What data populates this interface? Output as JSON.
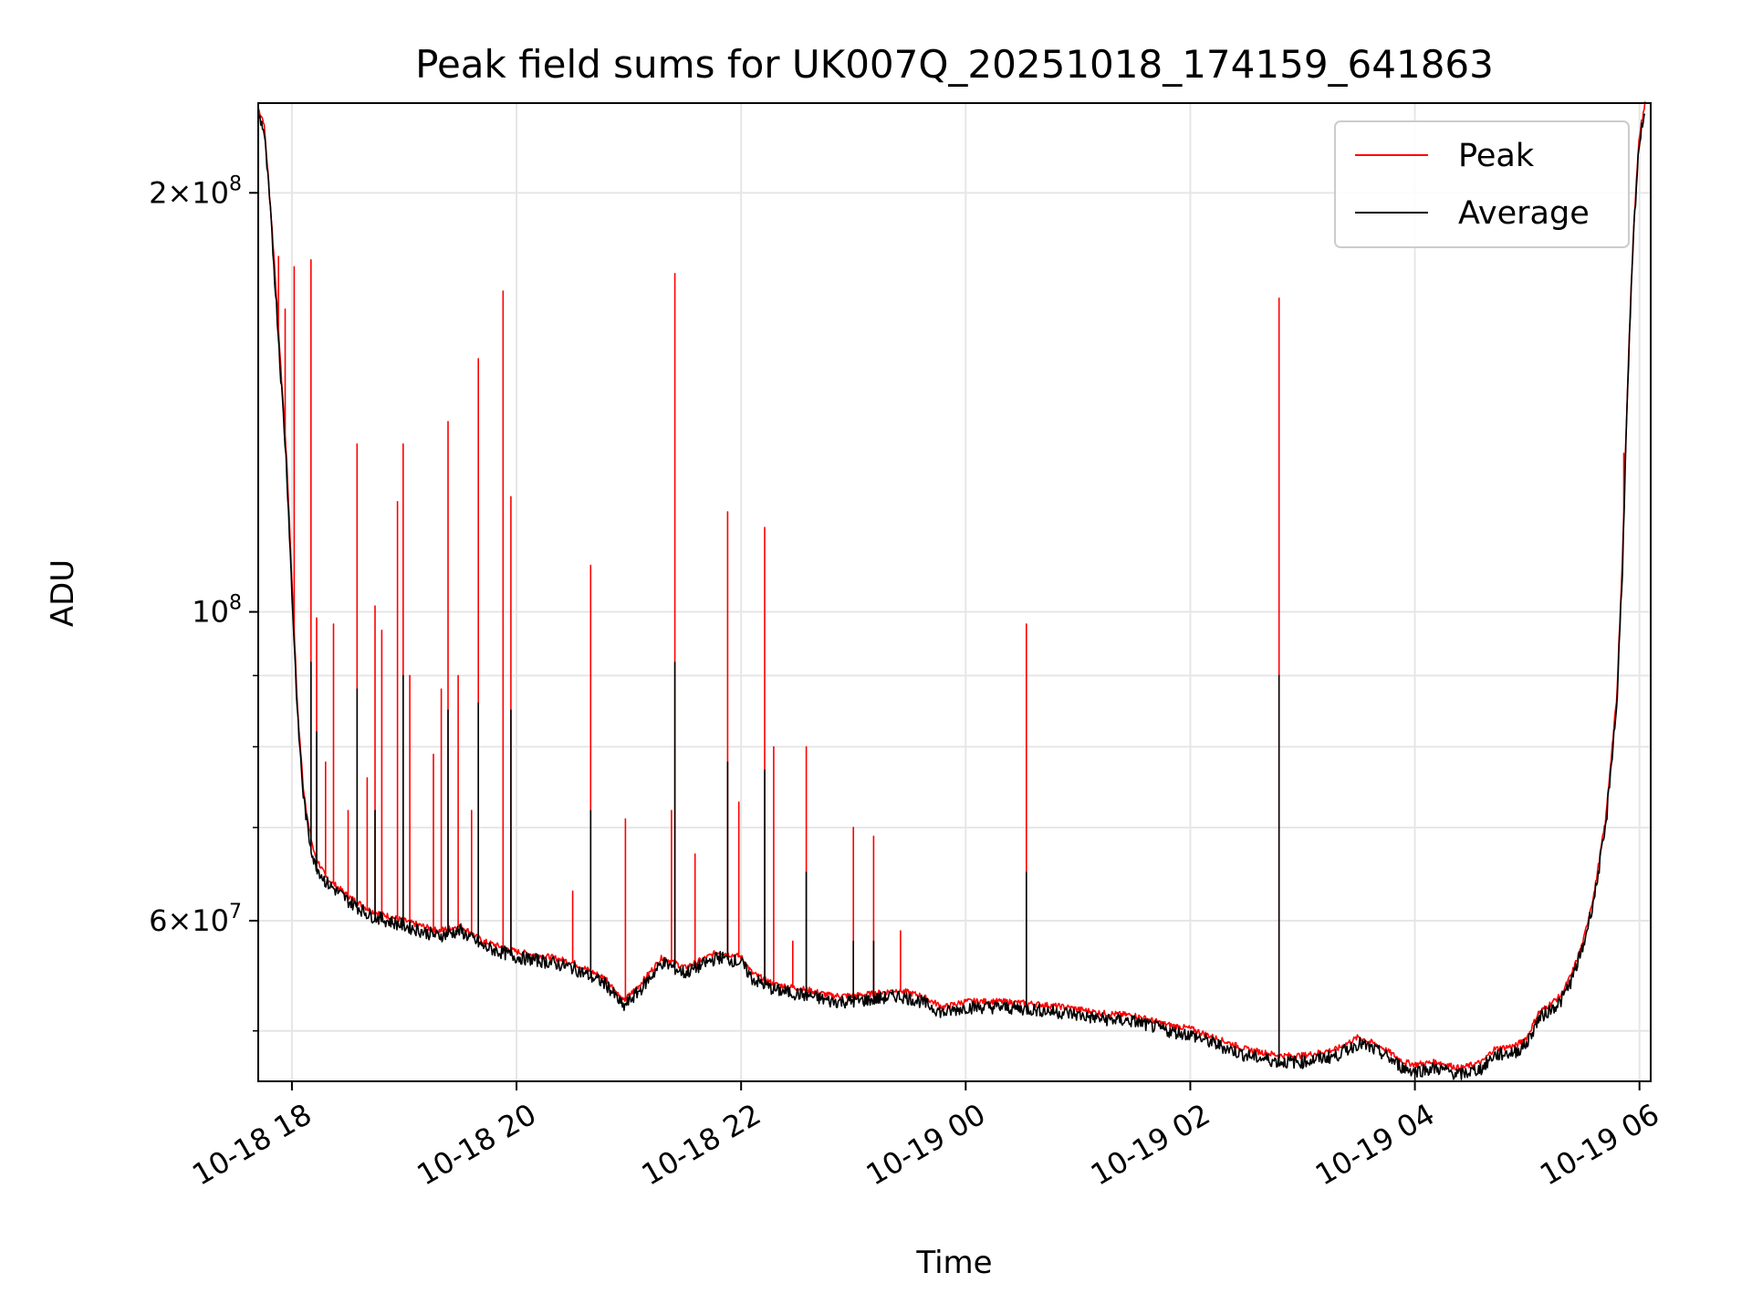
{
  "chart_data": {
    "type": "line",
    "title": "Peak field sums for UK007Q_20251018_174159_641863",
    "xlabel": "Time",
    "ylabel": "ADU",
    "yscale": "log",
    "ylim": [
      46000000,
      232000000
    ],
    "xlim_hours": [
      -0.3,
      12.1
    ],
    "grid": true,
    "legend_position": "top-right",
    "x_ticks": [
      {
        "hour": 0,
        "label": "10-18 18"
      },
      {
        "hour": 2,
        "label": "10-18 20"
      },
      {
        "hour": 4,
        "label": "10-18 22"
      },
      {
        "hour": 6,
        "label": "10-19 00"
      },
      {
        "hour": 8,
        "label": "10-19 02"
      },
      {
        "hour": 10,
        "label": "10-19 04"
      },
      {
        "hour": 12,
        "label": "10-19 06"
      }
    ],
    "y_ticks": [
      {
        "value": 200000000,
        "mantissa": "2",
        "exponent": "8"
      },
      {
        "value": 100000000,
        "mantissa": "",
        "exponent": "8"
      },
      {
        "value": 60000000,
        "mantissa": "6",
        "exponent": "7"
      }
    ],
    "y_minor_ticks": [
      50000000,
      70000000,
      80000000,
      90000000
    ],
    "series": [
      {
        "name": "Peak",
        "color": "#ff0000",
        "baseline": [
          [
            -0.3,
            230000000
          ],
          [
            -0.25,
            225000000
          ],
          [
            -0.2,
            200000000
          ],
          [
            -0.15,
            175000000
          ],
          [
            -0.1,
            150000000
          ],
          [
            -0.05,
            130000000
          ],
          [
            0.0,
            105000000
          ],
          [
            0.05,
            85000000
          ],
          [
            0.1,
            75000000
          ],
          [
            0.15,
            70000000
          ],
          [
            0.2,
            67000000
          ],
          [
            0.3,
            64500000
          ],
          [
            0.5,
            62500000
          ],
          [
            0.7,
            61000000
          ],
          [
            1.0,
            60000000
          ],
          [
            1.3,
            59000000
          ],
          [
            1.5,
            59500000
          ],
          [
            1.7,
            58000000
          ],
          [
            2.0,
            57000000
          ],
          [
            2.3,
            56500000
          ],
          [
            2.5,
            56000000
          ],
          [
            2.7,
            55000000
          ],
          [
            2.8,
            54500000
          ],
          [
            2.95,
            52500000
          ],
          [
            3.1,
            54000000
          ],
          [
            3.3,
            56500000
          ],
          [
            3.5,
            55500000
          ],
          [
            3.8,
            57000000
          ],
          [
            4.0,
            56500000
          ],
          [
            4.1,
            55000000
          ],
          [
            4.3,
            54000000
          ],
          [
            4.6,
            53500000
          ],
          [
            4.8,
            53000000
          ],
          [
            5.0,
            53000000
          ],
          [
            5.2,
            53200000
          ],
          [
            5.4,
            53500000
          ],
          [
            5.6,
            53000000
          ],
          [
            5.8,
            52000000
          ],
          [
            6.0,
            52500000
          ],
          [
            6.3,
            52500000
          ],
          [
            6.6,
            52300000
          ],
          [
            6.9,
            52000000
          ],
          [
            7.2,
            51500000
          ],
          [
            7.5,
            51300000
          ],
          [
            7.8,
            50500000
          ],
          [
            8.0,
            50200000
          ],
          [
            8.2,
            49500000
          ],
          [
            8.5,
            48500000
          ],
          [
            8.8,
            48000000
          ],
          [
            9.0,
            48000000
          ],
          [
            9.3,
            48500000
          ],
          [
            9.5,
            49500000
          ],
          [
            9.7,
            48700000
          ],
          [
            9.9,
            47500000
          ],
          [
            10.0,
            47300000
          ],
          [
            10.2,
            47500000
          ],
          [
            10.4,
            47000000
          ],
          [
            10.6,
            47500000
          ],
          [
            10.7,
            48500000
          ],
          [
            10.9,
            48800000
          ],
          [
            11.0,
            49500000
          ],
          [
            11.1,
            51500000
          ],
          [
            11.3,
            53000000
          ],
          [
            11.4,
            55000000
          ],
          [
            11.5,
            58000000
          ],
          [
            11.6,
            63000000
          ],
          [
            11.7,
            71000000
          ],
          [
            11.8,
            87000000
          ],
          [
            11.85,
            110000000
          ],
          [
            11.9,
            150000000
          ],
          [
            11.95,
            190000000
          ],
          [
            12.0,
            220000000
          ],
          [
            12.05,
            232000000
          ]
        ],
        "spikes": [
          [
            -0.12,
            180000000
          ],
          [
            -0.06,
            165000000
          ],
          [
            0.02,
            177000000
          ],
          [
            0.17,
            179000000
          ],
          [
            0.22,
            99000000
          ],
          [
            0.3,
            78000000
          ],
          [
            0.37,
            98000000
          ],
          [
            0.5,
            72000000
          ],
          [
            0.58,
            132000000
          ],
          [
            0.67,
            76000000
          ],
          [
            0.74,
            101000000
          ],
          [
            0.8,
            97000000
          ],
          [
            0.94,
            120000000
          ],
          [
            0.99,
            132000000
          ],
          [
            1.05,
            90000000
          ],
          [
            1.26,
            79000000
          ],
          [
            1.33,
            88000000
          ],
          [
            1.39,
            137000000
          ],
          [
            1.48,
            90000000
          ],
          [
            1.6,
            72000000
          ],
          [
            1.66,
            152000000
          ],
          [
            1.88,
            170000000
          ],
          [
            1.95,
            121000000
          ],
          [
            2.5,
            63000000
          ],
          [
            2.66,
            108000000
          ],
          [
            2.97,
            71000000
          ],
          [
            3.38,
            72000000
          ],
          [
            3.41,
            175000000
          ],
          [
            3.59,
            67000000
          ],
          [
            3.88,
            118000000
          ],
          [
            3.98,
            73000000
          ],
          [
            4.21,
            115000000
          ],
          [
            4.29,
            80000000
          ],
          [
            4.46,
            58000000
          ],
          [
            4.58,
            80000000
          ],
          [
            5.0,
            70000000
          ],
          [
            5.18,
            69000000
          ],
          [
            5.42,
            59000000
          ],
          [
            6.54,
            98000000
          ],
          [
            8.79,
            168000000
          ],
          [
            11.86,
            130000000
          ]
        ]
      },
      {
        "name": "Average",
        "color": "#000000",
        "baseline": [
          [
            -0.3,
            228000000
          ],
          [
            -0.25,
            222000000
          ],
          [
            -0.2,
            198000000
          ],
          [
            -0.15,
            172000000
          ],
          [
            -0.1,
            148000000
          ],
          [
            -0.05,
            128000000
          ],
          [
            0.0,
            103000000
          ],
          [
            0.05,
            84000000
          ],
          [
            0.1,
            74000000
          ],
          [
            0.15,
            69000000
          ],
          [
            0.2,
            66000000
          ],
          [
            0.3,
            64000000
          ],
          [
            0.5,
            62000000
          ],
          [
            0.7,
            60500000
          ],
          [
            1.0,
            59500000
          ],
          [
            1.3,
            58500000
          ],
          [
            1.5,
            59000000
          ],
          [
            1.7,
            57500000
          ],
          [
            2.0,
            56500000
          ],
          [
            2.3,
            56000000
          ],
          [
            2.5,
            55500000
          ],
          [
            2.7,
            54500000
          ],
          [
            2.8,
            54000000
          ],
          [
            2.95,
            52000000
          ],
          [
            3.1,
            53500000
          ],
          [
            3.3,
            56000000
          ],
          [
            3.5,
            55000000
          ],
          [
            3.8,
            56500000
          ],
          [
            4.0,
            56000000
          ],
          [
            4.1,
            54500000
          ],
          [
            4.3,
            53500000
          ],
          [
            4.6,
            53000000
          ],
          [
            4.8,
            52500000
          ],
          [
            5.0,
            52500000
          ],
          [
            5.2,
            52700000
          ],
          [
            5.4,
            53000000
          ],
          [
            5.6,
            52500000
          ],
          [
            5.8,
            51500000
          ],
          [
            6.0,
            52000000
          ],
          [
            6.3,
            52000000
          ],
          [
            6.6,
            51800000
          ],
          [
            6.9,
            51500000
          ],
          [
            7.2,
            51000000
          ],
          [
            7.5,
            50800000
          ],
          [
            7.8,
            50000000
          ],
          [
            8.0,
            49700000
          ],
          [
            8.2,
            49000000
          ],
          [
            8.5,
            48000000
          ],
          [
            8.8,
            47500000
          ],
          [
            9.0,
            47500000
          ],
          [
            9.3,
            48000000
          ],
          [
            9.5,
            49000000
          ],
          [
            9.7,
            48200000
          ],
          [
            9.9,
            47000000
          ],
          [
            10.0,
            46800000
          ],
          [
            10.2,
            47000000
          ],
          [
            10.4,
            46500000
          ],
          [
            10.6,
            47000000
          ],
          [
            10.7,
            48000000
          ],
          [
            10.9,
            48300000
          ],
          [
            11.0,
            49000000
          ],
          [
            11.1,
            51000000
          ],
          [
            11.3,
            52500000
          ],
          [
            11.4,
            54500000
          ],
          [
            11.5,
            57500000
          ],
          [
            11.6,
            62500000
          ],
          [
            11.7,
            70000000
          ],
          [
            11.8,
            86000000
          ],
          [
            11.85,
            108000000
          ],
          [
            11.9,
            148000000
          ],
          [
            11.95,
            188000000
          ],
          [
            12.0,
            218000000
          ],
          [
            12.05,
            230000000
          ]
        ],
        "spikes": [
          [
            0.17,
            92000000
          ],
          [
            0.22,
            82000000
          ],
          [
            0.58,
            88000000
          ],
          [
            0.74,
            72000000
          ],
          [
            0.99,
            90000000
          ],
          [
            1.39,
            85000000
          ],
          [
            1.66,
            86000000
          ],
          [
            1.95,
            85000000
          ],
          [
            2.66,
            72000000
          ],
          [
            3.41,
            92000000
          ],
          [
            3.88,
            78000000
          ],
          [
            4.21,
            77000000
          ],
          [
            4.58,
            65000000
          ],
          [
            5.0,
            58000000
          ],
          [
            5.18,
            58000000
          ],
          [
            6.54,
            65000000
          ],
          [
            8.79,
            90000000
          ],
          [
            10.0,
            46000000
          ]
        ]
      }
    ]
  }
}
